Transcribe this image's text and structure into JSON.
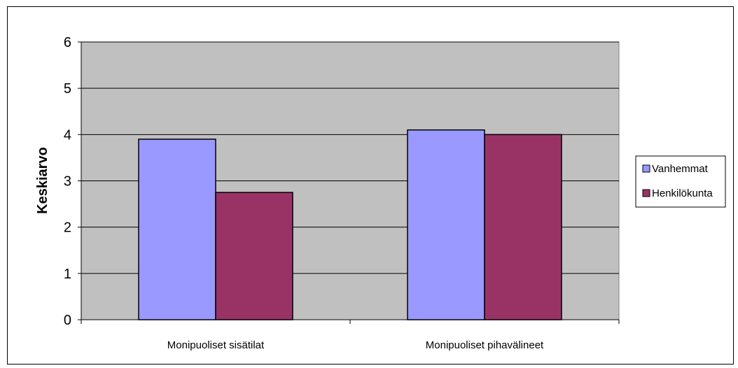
{
  "chart_data": {
    "type": "bar",
    "title": "",
    "xlabel": "",
    "ylabel": "Keskiarvo",
    "categories": [
      "Monipuoliset sisätilat",
      "Monipuoliset pihavälineet"
    ],
    "series": [
      {
        "name": "Vanhemmat",
        "values": [
          3.9,
          4.1
        ],
        "color": "#9999ff"
      },
      {
        "name": "Henkilökunta",
        "values": [
          2.75,
          4.0
        ],
        "color": "#993366"
      }
    ],
    "ylim": [
      0,
      6
    ],
    "yticks": [
      "0",
      "1",
      "2",
      "3",
      "4",
      "5",
      "6"
    ],
    "grid": true,
    "legend_position": "right",
    "plot_background": "#c0c0c0"
  }
}
